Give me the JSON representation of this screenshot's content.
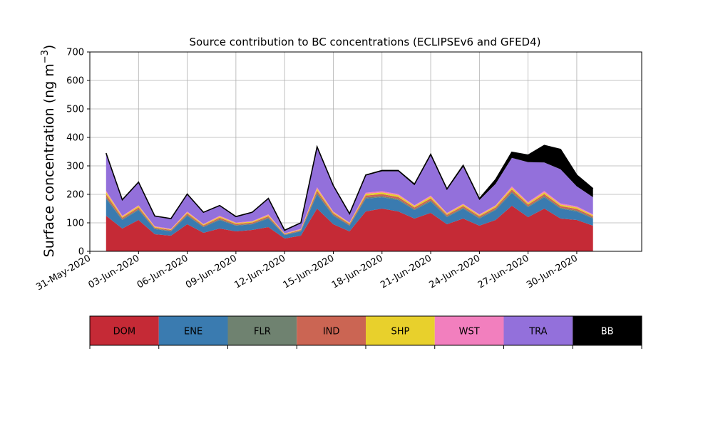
{
  "chart_data": {
    "type": "area",
    "stacked": true,
    "title": "Source contribution to BC concentrations (ECLIPSEv6 and GFED4)",
    "ylabel": "Surface concentration (ng m",
    "ylabel_exponent": "−3",
    "ylabel_suffix": ")",
    "xlabel": "",
    "ylim": [
      0,
      700
    ],
    "xlim": [
      "2020-05-31",
      "2020-07-04"
    ],
    "yticks": [
      0,
      100,
      200,
      300,
      400,
      500,
      600,
      700
    ],
    "xticks": [
      "31-May-2020",
      "03-Jun-2020",
      "06-Jun-2020",
      "09-Jun-2020",
      "12-Jun-2020",
      "15-Jun-2020",
      "18-Jun-2020",
      "21-Jun-2020",
      "24-Jun-2020",
      "27-Jun-2020",
      "30-Jun-2020"
    ],
    "grid": true,
    "legend": "colorbar-below",
    "x": [
      "2020-06-01",
      "2020-06-02",
      "2020-06-03",
      "2020-06-04",
      "2020-06-05",
      "2020-06-06",
      "2020-06-07",
      "2020-06-08",
      "2020-06-09",
      "2020-06-10",
      "2020-06-11",
      "2020-06-12",
      "2020-06-13",
      "2020-06-14",
      "2020-06-15",
      "2020-06-16",
      "2020-06-17",
      "2020-06-18",
      "2020-06-19",
      "2020-06-20",
      "2020-06-21",
      "2020-06-22",
      "2020-06-23",
      "2020-06-24",
      "2020-06-25",
      "2020-06-26",
      "2020-06-27",
      "2020-06-28",
      "2020-06-29",
      "2020-06-30",
      "2020-07-01"
    ],
    "series": [
      {
        "name": "DOM",
        "color": "#c52a36",
        "values": [
          125,
          80,
          110,
          60,
          55,
          95,
          65,
          80,
          70,
          75,
          85,
          45,
          55,
          150,
          95,
          70,
          140,
          150,
          140,
          115,
          135,
          95,
          115,
          90,
          110,
          160,
          120,
          150,
          115,
          110,
          90
        ]
      },
      {
        "name": "ENE",
        "color": "#3a7bb0",
        "values": [
          60,
          30,
          35,
          18,
          15,
          30,
          20,
          30,
          20,
          20,
          30,
          12,
          15,
          50,
          30,
          20,
          45,
          40,
          40,
          30,
          40,
          25,
          35,
          25,
          35,
          45,
          35,
          40,
          35,
          30,
          25
        ]
      },
      {
        "name": "FLR",
        "color": "#6f8270",
        "values": [
          5,
          3,
          3,
          2,
          2,
          3,
          2,
          3,
          2,
          2,
          3,
          1,
          2,
          5,
          3,
          2,
          4,
          4,
          4,
          3,
          4,
          3,
          3,
          3,
          3,
          4,
          3,
          4,
          3,
          3,
          3
        ]
      },
      {
        "name": "IND",
        "color": "#cb6553",
        "values": [
          10,
          5,
          6,
          3,
          3,
          5,
          4,
          5,
          4,
          4,
          5,
          2,
          3,
          8,
          5,
          4,
          7,
          7,
          7,
          6,
          7,
          5,
          6,
          5,
          6,
          8,
          6,
          7,
          6,
          6,
          5
        ]
      },
      {
        "name": "SHP",
        "color": "#e8d02c",
        "values": [
          8,
          4,
          5,
          3,
          2,
          4,
          3,
          4,
          3,
          3,
          4,
          2,
          2,
          7,
          4,
          3,
          6,
          6,
          6,
          5,
          6,
          4,
          5,
          4,
          5,
          6,
          5,
          6,
          5,
          5,
          4
        ]
      },
      {
        "name": "WST",
        "color": "#f27fbe",
        "values": [
          5,
          3,
          3,
          2,
          2,
          3,
          2,
          3,
          2,
          2,
          3,
          1,
          2,
          5,
          3,
          2,
          4,
          4,
          4,
          3,
          4,
          3,
          3,
          3,
          3,
          5,
          4,
          5,
          4,
          4,
          3
        ]
      },
      {
        "name": "TRA",
        "color": "#9370db",
        "values": [
          130,
          55,
          80,
          35,
          35,
          60,
          40,
          35,
          20,
          30,
          55,
          10,
          20,
          140,
          90,
          30,
          60,
          70,
          80,
          70,
          140,
          80,
          130,
          50,
          75,
          100,
          140,
          100,
          120,
          70,
          60
        ]
      },
      {
        "name": "BB",
        "color": "#000000",
        "values": [
          2,
          1,
          1,
          1,
          1,
          1,
          1,
          1,
          1,
          1,
          1,
          1,
          1,
          2,
          1,
          1,
          2,
          3,
          3,
          4,
          5,
          4,
          5,
          5,
          15,
          20,
          25,
          60,
          70,
          40,
          30
        ]
      }
    ],
    "legend_entries": [
      "DOM",
      "ENE",
      "FLR",
      "IND",
      "SHP",
      "WST",
      "TRA",
      "BB"
    ],
    "legend_text_colors": [
      "#000000",
      "#000000",
      "#000000",
      "#000000",
      "#000000",
      "#000000",
      "#000000",
      "#ffffff"
    ]
  }
}
